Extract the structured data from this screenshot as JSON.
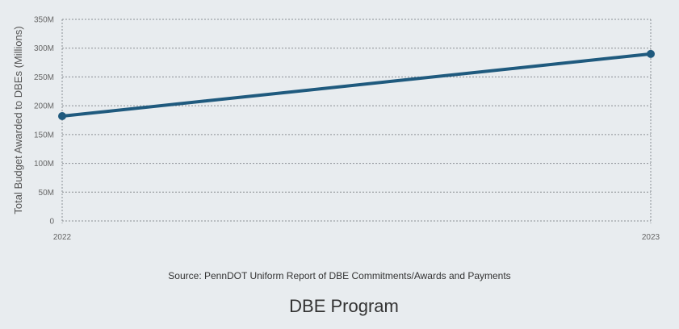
{
  "chart_data": {
    "type": "line",
    "x": [
      "2022",
      "2023"
    ],
    "series": [
      {
        "values": [
          182,
          290
        ]
      }
    ],
    "ylabel": "Total Budget Awarded to DBEs (Millions)",
    "xlabel": "",
    "ylim": [
      0,
      350
    ],
    "yticks": [
      {
        "value": 0,
        "label": "0"
      },
      {
        "value": 50,
        "label": "50M"
      },
      {
        "value": 100,
        "label": "100M"
      },
      {
        "value": 150,
        "label": "150M"
      },
      {
        "value": 200,
        "label": "200M"
      },
      {
        "value": 250,
        "label": "250M"
      },
      {
        "value": 300,
        "label": "300M"
      },
      {
        "value": 350,
        "label": "350M"
      }
    ],
    "grid": true,
    "line_color": "#1f5a7e"
  },
  "source_text": "Source: PennDOT Uniform Report of DBE Commitments/Awards and Payments",
  "caption": "DBE Program"
}
